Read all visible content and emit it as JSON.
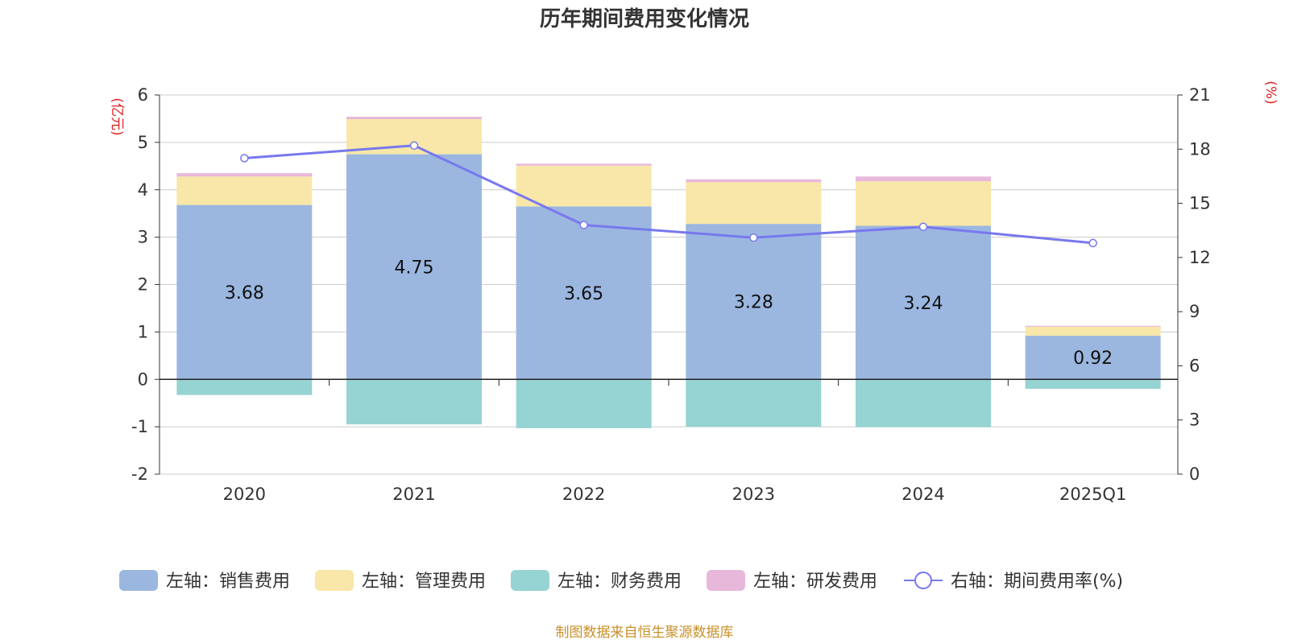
{
  "chart_data": {
    "type": "bar",
    "title": "历年期间费用变化情况",
    "categories": [
      "2020",
      "2021",
      "2022",
      "2023",
      "2024",
      "2025Q1"
    ],
    "left_axis": {
      "unit": "(亿元)",
      "ylim": [
        -2,
        6
      ],
      "ticks": [
        "6",
        "5",
        "4",
        "3",
        "2",
        "1",
        "0",
        "-1",
        "-2"
      ]
    },
    "right_axis": {
      "unit": "(%)",
      "ylim": [
        0,
        21
      ],
      "ticks": [
        "21",
        "18",
        "15",
        "12",
        "9",
        "6",
        "3",
        "0"
      ]
    },
    "series": [
      {
        "name": "左轴：销售费用",
        "axis": "left",
        "color": "#9bb7e0",
        "values": [
          3.68,
          4.75,
          3.65,
          3.28,
          3.24,
          0.92
        ],
        "labels": [
          "3.68",
          "4.75",
          "3.65",
          "3.28",
          "3.24",
          "0.92"
        ]
      },
      {
        "name": "左轴：管理费用",
        "axis": "left",
        "color": "#f8e7a8",
        "values": [
          0.6,
          0.74,
          0.86,
          0.88,
          0.94,
          0.19
        ]
      },
      {
        "name": "左轴：财务费用",
        "axis": "left",
        "color": "#96d3d3",
        "values": [
          -0.33,
          -0.95,
          -1.03,
          -1.0,
          -1.01,
          -0.2
        ]
      },
      {
        "name": "左轴：研发费用",
        "axis": "left",
        "color": "#e8b8da",
        "values": [
          0.07,
          0.05,
          0.04,
          0.06,
          0.1,
          0.02
        ]
      },
      {
        "name": "右轴：期间费用率(%)",
        "axis": "right",
        "type": "line",
        "color": "#7878ee",
        "values": [
          17.5,
          18.2,
          13.8,
          13.1,
          13.7,
          12.8
        ]
      }
    ],
    "source": "制图数据来自恒生聚源数据库"
  }
}
